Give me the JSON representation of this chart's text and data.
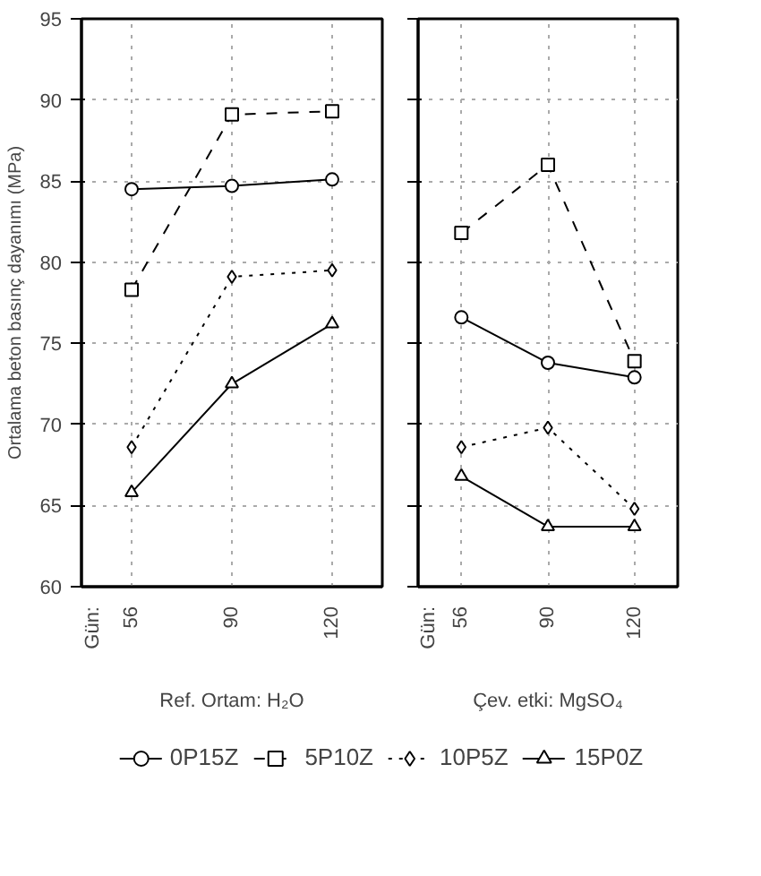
{
  "chart_data": [
    {
      "type": "line",
      "categories": [
        "56",
        "90",
        "120"
      ],
      "ylabel": "Ortalama beton basınç dayanımı (MPa)",
      "xlabel": "Ref. Ortam: H₂O",
      "annotations": [
        "Gün:"
      ],
      "ylim": [
        60,
        95
      ],
      "yticks": [
        60,
        65,
        70,
        75,
        80,
        85,
        90,
        95
      ],
      "grid": true,
      "legend": "bottom",
      "series": [
        {
          "name": "0P15Z",
          "color": "#000000",
          "marker": "circle",
          "line_style": "solid",
          "values": [
            84.5,
            84.7,
            85.1
          ]
        },
        {
          "name": "5P10Z",
          "color": "#000000",
          "marker": "square",
          "line_style": "dashed",
          "values": [
            78.3,
            89.1,
            89.3
          ]
        },
        {
          "name": "10P5Z",
          "color": "#000000",
          "marker": "diamond",
          "line_style": "dotted",
          "values": [
            68.6,
            79.1,
            79.5
          ]
        },
        {
          "name": "15P0Z",
          "color": "#000000",
          "marker": "triangle",
          "line_style": "solid",
          "values": [
            65.8,
            72.5,
            76.2
          ]
        }
      ]
    },
    {
      "type": "line",
      "categories": [
        "56",
        "90",
        "120"
      ],
      "xlabel": "Çev. etki: MgSO₄",
      "annotations": [
        "Gün:"
      ],
      "ylim": [
        60,
        95
      ],
      "yticks": [
        60,
        65,
        70,
        75,
        80,
        85,
        90,
        95
      ],
      "tick_labels": "x",
      "grid": true,
      "series": [
        {
          "color": "#000000",
          "marker": "circle",
          "line_style": "solid",
          "values": [
            76.6,
            73.8,
            72.9
          ]
        },
        {
          "color": "#000000",
          "marker": "square",
          "line_style": "dashed",
          "values": [
            81.8,
            86.0,
            73.9
          ]
        },
        {
          "color": "#000000",
          "marker": "diamond",
          "line_style": "dotted",
          "values": [
            68.6,
            69.8,
            64.8
          ]
        },
        {
          "color": "#000000",
          "marker": "triangle",
          "line_style": "solid",
          "values": [
            66.8,
            63.7,
            63.7
          ]
        }
      ]
    }
  ]
}
